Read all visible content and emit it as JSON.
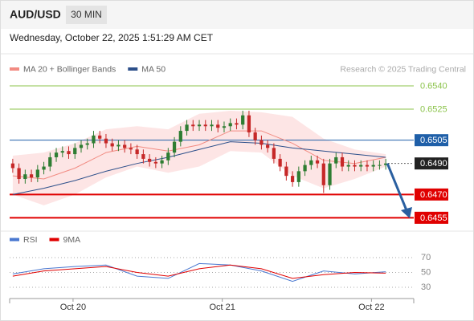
{
  "header": {
    "symbol": "AUD/USD",
    "timeframe": "30 MIN",
    "date": "Wednesday, October 22, 2025 1:51:29 AM CET"
  },
  "chart_data": [
    {
      "type": "candlestick",
      "legend": [
        {
          "name": "MA 20 + Bollinger Bands",
          "color": "#f28b82"
        },
        {
          "name": "MA 50",
          "color": "#2c4f8a"
        }
      ],
      "source": "Research © 2025 Trading Central",
      "xlim": [
        -0.5,
        64.5
      ],
      "ylim": [
        0.6448,
        0.6546
      ],
      "up_color": "#2e7d32",
      "down_color": "#c62828",
      "open": [
        0.649,
        0.6487,
        0.648,
        0.6483,
        0.6481,
        0.6486,
        0.6488,
        0.6494,
        0.6497,
        0.6498,
        0.6496,
        0.65,
        0.6502,
        0.6503,
        0.6508,
        0.6506,
        0.6503,
        0.6501,
        0.6502,
        0.65,
        0.6499,
        0.6496,
        0.6493,
        0.6491,
        0.649,
        0.6492,
        0.6497,
        0.6504,
        0.6511,
        0.6515,
        0.6514,
        0.6515,
        0.6514,
        0.6515,
        0.6513,
        0.6514,
        0.6516,
        0.6515,
        0.6521,
        0.651,
        0.6505,
        0.6502,
        0.65,
        0.6493,
        0.6488,
        0.6482,
        0.6478,
        0.6485,
        0.6489,
        0.6492,
        0.649,
        0.6476,
        0.649,
        0.6494,
        0.6488,
        0.6489,
        0.6488,
        0.6489,
        0.6488,
        0.6489,
        0.6489
      ],
      "high": [
        0.6493,
        0.649,
        0.6486,
        0.6486,
        0.6489,
        0.6491,
        0.6497,
        0.65,
        0.6501,
        0.6501,
        0.6503,
        0.6505,
        0.6506,
        0.6511,
        0.6511,
        0.6509,
        0.6506,
        0.6505,
        0.6505,
        0.6503,
        0.6502,
        0.6499,
        0.6496,
        0.6494,
        0.6495,
        0.65,
        0.6507,
        0.6514,
        0.6518,
        0.6518,
        0.6518,
        0.6518,
        0.6518,
        0.6518,
        0.6517,
        0.6519,
        0.6519,
        0.6524,
        0.6524,
        0.6513,
        0.6508,
        0.6505,
        0.6503,
        0.6496,
        0.6491,
        0.6485,
        0.6488,
        0.6492,
        0.6495,
        0.6495,
        0.6493,
        0.6493,
        0.6497,
        0.6497,
        0.6492,
        0.6492,
        0.6492,
        0.6492,
        0.6492,
        0.6492,
        0.6493
      ],
      "low": [
        0.6484,
        0.6477,
        0.6477,
        0.6478,
        0.6478,
        0.6483,
        0.6485,
        0.6491,
        0.6494,
        0.6493,
        0.6493,
        0.6497,
        0.6499,
        0.65,
        0.6503,
        0.65,
        0.6498,
        0.6498,
        0.6497,
        0.6496,
        0.6493,
        0.649,
        0.6488,
        0.6487,
        0.6487,
        0.6489,
        0.6494,
        0.6501,
        0.6508,
        0.6511,
        0.6511,
        0.6511,
        0.6511,
        0.651,
        0.651,
        0.6511,
        0.6512,
        0.6512,
        0.6507,
        0.6502,
        0.6499,
        0.6497,
        0.649,
        0.6485,
        0.6479,
        0.6475,
        0.6475,
        0.6482,
        0.6486,
        0.6487,
        0.6471,
        0.6473,
        0.6487,
        0.6485,
        0.6485,
        0.6485,
        0.6485,
        0.6485,
        0.6485,
        0.6486,
        0.6486
      ],
      "close": [
        0.6487,
        0.648,
        0.6483,
        0.6481,
        0.6486,
        0.6488,
        0.6494,
        0.6497,
        0.6498,
        0.6496,
        0.65,
        0.6502,
        0.6503,
        0.6508,
        0.6506,
        0.6503,
        0.6501,
        0.6502,
        0.65,
        0.6499,
        0.6496,
        0.6493,
        0.6491,
        0.649,
        0.6492,
        0.6497,
        0.6504,
        0.6511,
        0.6515,
        0.6514,
        0.6515,
        0.6514,
        0.6515,
        0.6513,
        0.6514,
        0.6516,
        0.6515,
        0.6521,
        0.651,
        0.6505,
        0.6502,
        0.65,
        0.6493,
        0.6488,
        0.6482,
        0.6478,
        0.6485,
        0.6489,
        0.6492,
        0.649,
        0.6476,
        0.649,
        0.6494,
        0.6488,
        0.6489,
        0.6488,
        0.6489,
        0.6488,
        0.6489,
        0.6489,
        0.649
      ],
      "line_x": [
        0,
        5,
        10,
        15,
        20,
        25,
        30,
        35,
        40,
        45,
        50,
        55,
        60
      ],
      "ma20": [
        0.6482,
        0.648,
        0.6487,
        0.6497,
        0.6501,
        0.6498,
        0.6502,
        0.6511,
        0.6511,
        0.6503,
        0.6492,
        0.649,
        0.6494
      ],
      "bb_upper": [
        0.6495,
        0.6497,
        0.6503,
        0.6512,
        0.6514,
        0.6512,
        0.6522,
        0.6524,
        0.6523,
        0.652,
        0.6506,
        0.6499,
        0.6496
      ],
      "bb_lower": [
        0.647,
        0.6463,
        0.647,
        0.6481,
        0.6488,
        0.6484,
        0.6488,
        0.6498,
        0.6497,
        0.6482,
        0.6474,
        0.648,
        0.6488
      ],
      "ma50": [
        0.647,
        0.6474,
        0.6479,
        0.6485,
        0.649,
        0.6494,
        0.6499,
        0.6504,
        0.6503,
        0.65,
        0.6498,
        0.6496,
        0.6494
      ],
      "levels": [
        {
          "value": 0.654,
          "label": "0.6540",
          "color": "#8bc34a",
          "style": "text"
        },
        {
          "value": 0.6525,
          "label": "0.6525",
          "color": "#8bc34a",
          "style": "text"
        },
        {
          "value": 0.6505,
          "label": "0.6505",
          "color": "#1f5fa8",
          "style": "box"
        },
        {
          "value": 0.647,
          "label": "0.6470",
          "color": "#e00000",
          "style": "box"
        },
        {
          "value": 0.6455,
          "label": "0.6455",
          "color": "#e00000",
          "style": "box"
        }
      ],
      "current": {
        "value": 0.649,
        "label": "0.6490",
        "color": "#222222"
      }
    },
    {
      "type": "line",
      "xlim": [
        -0.5,
        64.5
      ],
      "ylim": [
        20,
        80
      ],
      "yticks": [
        30,
        50,
        70
      ],
      "x": [
        0,
        5,
        10,
        15,
        20,
        25,
        30,
        35,
        40,
        45,
        50,
        55,
        60
      ],
      "series": [
        {
          "name": "RSI",
          "color": "#4a78d0",
          "values": [
            48,
            55,
            58,
            60,
            45,
            42,
            62,
            60,
            52,
            38,
            52,
            48,
            51
          ]
        },
        {
          "name": "9MA",
          "color": "#e00000",
          "values": [
            45,
            52,
            55,
            58,
            50,
            45,
            55,
            60,
            55,
            42,
            47,
            50,
            49
          ]
        }
      ],
      "xticks": [
        {
          "value": 9.7,
          "label": "Oct 20"
        },
        {
          "value": 33.7,
          "label": "Oct 21"
        },
        {
          "value": 57.7,
          "label": "Oct 22"
        }
      ]
    }
  ]
}
